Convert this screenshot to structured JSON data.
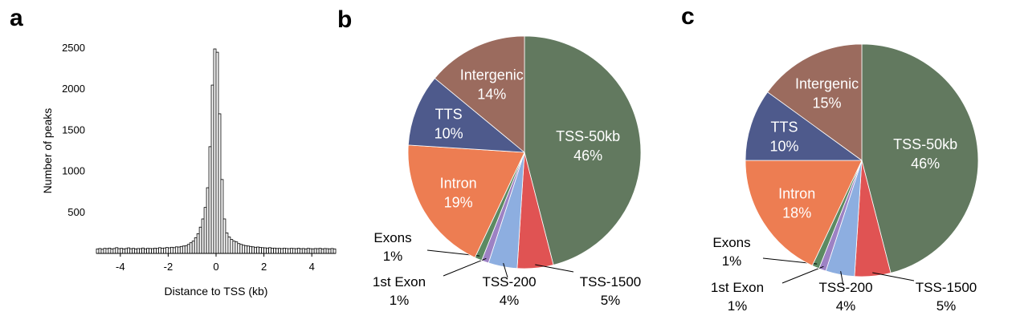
{
  "panels": {
    "a": "a",
    "b": "b",
    "c": "c"
  },
  "chart_data": [
    {
      "type": "bar",
      "panel": "a",
      "title": "",
      "xlabel": "Distance to TSS (kb)",
      "ylabel": "Number of peaks",
      "xlim": [
        -5,
        5
      ],
      "ylim": [
        0,
        2500
      ],
      "xticks": [
        -4,
        -2,
        0,
        2,
        4
      ],
      "yticks": [
        500,
        1000,
        1500,
        2000,
        2500
      ],
      "bin_width": 0.1,
      "x": [
        -4.95,
        -4.85,
        -4.75,
        -4.65,
        -4.55,
        -4.45,
        -4.35,
        -4.25,
        -4.15,
        -4.05,
        -3.95,
        -3.85,
        -3.75,
        -3.65,
        -3.55,
        -3.45,
        -3.35,
        -3.25,
        -3.15,
        -3.05,
        -2.95,
        -2.85,
        -2.75,
        -2.65,
        -2.55,
        -2.45,
        -2.35,
        -2.25,
        -2.15,
        -2.05,
        -1.95,
        -1.85,
        -1.75,
        -1.65,
        -1.55,
        -1.45,
        -1.35,
        -1.25,
        -1.15,
        -1.05,
        -0.95,
        -0.85,
        -0.75,
        -0.65,
        -0.55,
        -0.45,
        -0.35,
        -0.25,
        -0.15,
        -0.05,
        0.05,
        0.15,
        0.25,
        0.35,
        0.45,
        0.55,
        0.65,
        0.75,
        0.85,
        0.95,
        1.05,
        1.15,
        1.25,
        1.35,
        1.45,
        1.55,
        1.65,
        1.75,
        1.85,
        1.95,
        2.05,
        2.15,
        2.25,
        2.35,
        2.45,
        2.55,
        2.65,
        2.75,
        2.85,
        2.95,
        3.05,
        3.15,
        3.25,
        3.35,
        3.45,
        3.55,
        3.65,
        3.75,
        3.85,
        3.95,
        4.05,
        4.15,
        4.25,
        4.35,
        4.45,
        4.55,
        4.65,
        4.75,
        4.85,
        4.95
      ],
      "values": [
        55,
        60,
        50,
        62,
        58,
        65,
        55,
        60,
        70,
        58,
        62,
        55,
        60,
        68,
        57,
        62,
        55,
        60,
        58,
        66,
        55,
        62,
        60,
        58,
        64,
        60,
        70,
        62,
        66,
        72,
        68,
        75,
        70,
        80,
        78,
        85,
        90,
        95,
        110,
        130,
        150,
        190,
        240,
        320,
        420,
        560,
        800,
        1300,
        2050,
        2490,
        2450,
        1700,
        900,
        420,
        250,
        200,
        170,
        150,
        140,
        120,
        110,
        100,
        95,
        90,
        85,
        80,
        75,
        78,
        72,
        70,
        68,
        65,
        70,
        62,
        65,
        60,
        62,
        58,
        64,
        60,
        58,
        62,
        60,
        58,
        63,
        57,
        60,
        55,
        62,
        58,
        56,
        60,
        58,
        62,
        55,
        60,
        58,
        56,
        60,
        55
      ]
    },
    {
      "type": "pie",
      "panel": "b",
      "title": "",
      "slices": [
        {
          "label": "TSS-50kb",
          "pct_label": "46%",
          "value": 46,
          "color": "#62795f",
          "label_pos": "inside"
        },
        {
          "label": "TSS-1500",
          "pct_label": "5%",
          "value": 5,
          "color": "#e05353",
          "label_pos": "outside"
        },
        {
          "label": "TSS-200",
          "pct_label": "4%",
          "value": 4,
          "color": "#8daee0",
          "label_pos": "outside"
        },
        {
          "label": "1st Exon",
          "pct_label": "1%",
          "value": 1,
          "color": "#9d82c4",
          "label_pos": "outside"
        },
        {
          "label": "Exons",
          "pct_label": "1%",
          "value": 1,
          "color": "#5c8a62",
          "label_pos": "outside"
        },
        {
          "label": "Intron",
          "pct_label": "19%",
          "value": 19,
          "color": "#ed7d52",
          "label_pos": "inside"
        },
        {
          "label": "TTS",
          "pct_label": "10%",
          "value": 10,
          "color": "#4e5a8c",
          "label_pos": "inside"
        },
        {
          "label": "Intergenic",
          "pct_label": "14%",
          "value": 14,
          "color": "#9b6b5e",
          "label_pos": "inside"
        }
      ]
    },
    {
      "type": "pie",
      "panel": "c",
      "title": "",
      "slices": [
        {
          "label": "TSS-50kb",
          "pct_label": "46%",
          "value": 46,
          "color": "#62795f",
          "label_pos": "inside"
        },
        {
          "label": "TSS-1500",
          "pct_label": "5%",
          "value": 5,
          "color": "#e05353",
          "label_pos": "outside"
        },
        {
          "label": "TSS-200",
          "pct_label": "4%",
          "value": 4,
          "color": "#8daee0",
          "label_pos": "outside"
        },
        {
          "label": "1st Exon",
          "pct_label": "1%",
          "value": 1,
          "color": "#9d82c4",
          "label_pos": "outside"
        },
        {
          "label": "Exons",
          "pct_label": "1%",
          "value": 1,
          "color": "#5c8a62",
          "label_pos": "outside"
        },
        {
          "label": "Intron",
          "pct_label": "18%",
          "value": 18,
          "color": "#ed7d52",
          "label_pos": "inside"
        },
        {
          "label": "TTS",
          "pct_label": "10%",
          "value": 10,
          "color": "#4e5a8c",
          "label_pos": "inside"
        },
        {
          "label": "Intergenic",
          "pct_label": "15%",
          "value": 15,
          "color": "#9b6b5e",
          "label_pos": "inside"
        }
      ]
    }
  ]
}
